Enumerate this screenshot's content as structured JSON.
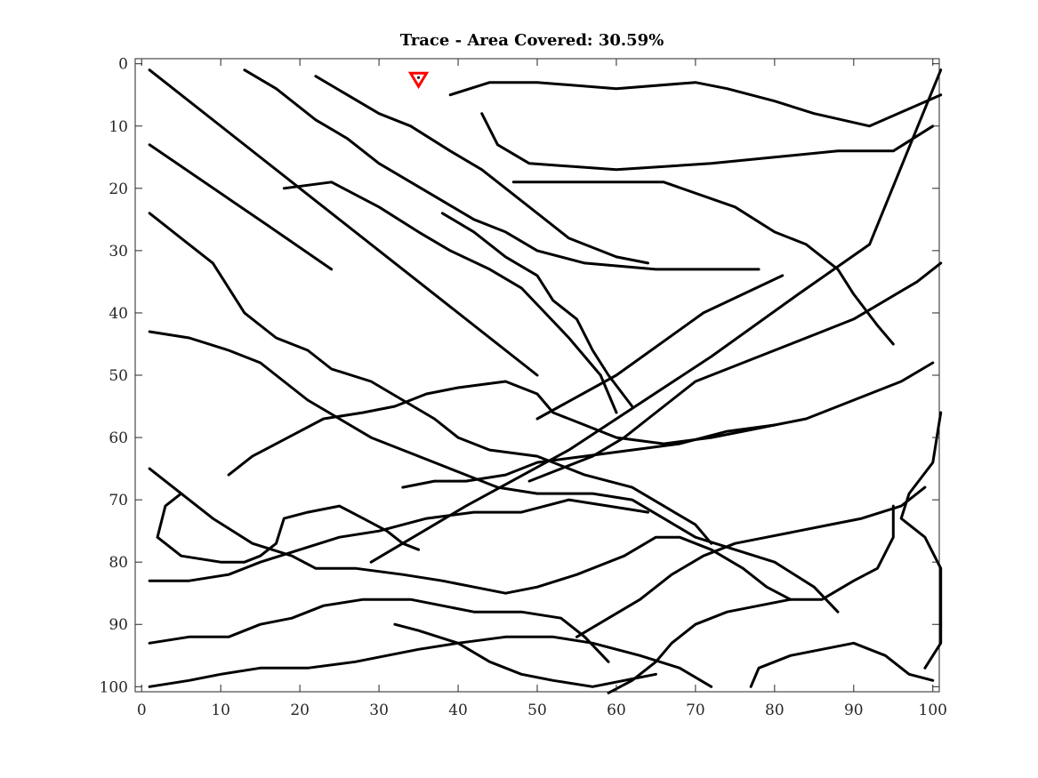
{
  "chart_data": {
    "type": "line",
    "title": "Trace - Area Covered: 30.59%",
    "xlabel": "",
    "ylabel": "",
    "xlim": [
      0,
      100
    ],
    "ylim": [
      0,
      100
    ],
    "y_reversed": true,
    "grid": false,
    "x_ticks": [
      0,
      10,
      20,
      30,
      40,
      50,
      60,
      70,
      80,
      90,
      100
    ],
    "y_ticks": [
      0,
      10,
      20,
      30,
      40,
      50,
      60,
      70,
      80,
      90,
      100
    ],
    "colors": {
      "trace": "#000000",
      "marker": "#ff0000"
    },
    "marker": {
      "x": 35,
      "y": 2.5,
      "shape": "triangle-down"
    },
    "series": [
      {
        "points": [
          [
            1,
            1
          ],
          [
            50,
            50
          ]
        ]
      },
      {
        "points": [
          [
            1,
            13
          ],
          [
            16,
            26
          ],
          [
            24,
            33
          ]
        ]
      },
      {
        "points": [
          [
            50,
            57
          ],
          [
            60,
            50
          ],
          [
            71,
            40
          ],
          [
            81,
            34
          ]
        ]
      },
      {
        "points": [
          [
            29,
            80
          ],
          [
            41,
            71
          ],
          [
            54,
            62
          ],
          [
            72,
            47
          ],
          [
            83,
            37
          ],
          [
            92,
            29
          ],
          [
            101,
            1
          ]
        ]
      },
      {
        "points": [
          [
            13,
            1
          ],
          [
            17,
            4
          ],
          [
            22,
            9
          ],
          [
            26,
            12
          ],
          [
            30,
            16
          ],
          [
            34,
            19
          ],
          [
            38,
            22
          ],
          [
            42,
            25
          ],
          [
            46,
            27
          ],
          [
            50,
            30
          ],
          [
            56,
            32
          ],
          [
            65,
            33
          ],
          [
            78,
            33
          ]
        ]
      },
      {
        "points": [
          [
            22,
            2
          ],
          [
            26,
            5
          ],
          [
            30,
            8
          ],
          [
            34,
            10
          ],
          [
            39,
            14
          ],
          [
            43,
            17
          ],
          [
            47,
            21
          ],
          [
            50,
            24
          ],
          [
            54,
            28
          ],
          [
            60,
            31
          ],
          [
            64,
            32
          ]
        ]
      },
      {
        "points": [
          [
            38,
            24
          ],
          [
            42,
            27
          ],
          [
            46,
            31
          ],
          [
            50,
            34
          ],
          [
            52,
            38
          ],
          [
            55,
            41
          ],
          [
            57,
            46
          ],
          [
            59,
            50
          ],
          [
            62,
            55
          ]
        ]
      },
      {
        "points": [
          [
            43,
            8
          ],
          [
            45,
            13
          ],
          [
            49,
            16
          ],
          [
            60,
            17
          ],
          [
            72,
            16
          ],
          [
            80,
            15
          ],
          [
            88,
            14
          ],
          [
            95,
            14
          ],
          [
            100,
            10
          ]
        ]
      },
      {
        "points": [
          [
            39,
            5
          ],
          [
            44,
            3
          ],
          [
            50,
            3
          ],
          [
            60,
            4
          ],
          [
            70,
            3
          ],
          [
            74,
            4
          ],
          [
            80,
            6
          ],
          [
            85,
            8
          ],
          [
            92,
            10
          ],
          [
            101,
            5
          ]
        ]
      },
      {
        "points": [
          [
            47,
            19
          ],
          [
            57,
            19
          ],
          [
            66,
            19
          ],
          [
            75,
            23
          ],
          [
            80,
            27
          ],
          [
            84,
            29
          ],
          [
            88,
            33
          ],
          [
            90,
            37
          ],
          [
            93,
            42
          ],
          [
            95,
            45
          ]
        ]
      },
      {
        "points": [
          [
            1,
            24
          ],
          [
            5,
            28
          ],
          [
            9,
            32
          ],
          [
            11,
            36
          ],
          [
            13,
            40
          ],
          [
            17,
            44
          ],
          [
            21,
            46
          ],
          [
            24,
            49
          ],
          [
            29,
            51
          ],
          [
            33,
            54
          ],
          [
            37,
            57
          ],
          [
            40,
            60
          ],
          [
            44,
            62
          ],
          [
            50,
            63
          ],
          [
            56,
            66
          ],
          [
            62,
            68
          ],
          [
            66,
            71
          ],
          [
            70,
            74
          ],
          [
            72,
            77
          ]
        ]
      },
      {
        "points": [
          [
            1,
            43
          ],
          [
            6,
            44
          ],
          [
            11,
            46
          ],
          [
            15,
            48
          ],
          [
            18,
            51
          ],
          [
            21,
            54
          ],
          [
            25,
            57
          ],
          [
            29,
            60
          ],
          [
            33,
            62
          ],
          [
            37,
            64
          ],
          [
            41,
            66
          ],
          [
            45,
            68
          ],
          [
            50,
            69
          ],
          [
            57,
            69
          ],
          [
            62,
            70
          ],
          [
            66,
            73
          ],
          [
            70,
            76
          ],
          [
            75,
            78
          ],
          [
            80,
            80
          ],
          [
            85,
            84
          ],
          [
            88,
            88
          ]
        ]
      },
      {
        "points": [
          [
            18,
            20
          ],
          [
            24,
            19
          ],
          [
            30,
            23
          ],
          [
            35,
            27
          ],
          [
            39,
            30
          ],
          [
            44,
            33
          ],
          [
            48,
            36
          ],
          [
            51,
            40
          ],
          [
            54,
            44
          ],
          [
            56,
            47
          ],
          [
            58,
            50
          ],
          [
            60,
            56
          ]
        ]
      },
      {
        "points": [
          [
            1,
            65
          ],
          [
            5,
            69
          ],
          [
            9,
            73
          ],
          [
            14,
            77
          ],
          [
            19,
            79
          ],
          [
            22,
            81
          ],
          [
            27,
            81
          ],
          [
            33,
            82
          ],
          [
            38,
            83
          ],
          [
            42,
            84
          ],
          [
            46,
            85
          ],
          [
            50,
            84
          ],
          [
            55,
            82
          ],
          [
            61,
            79
          ],
          [
            65,
            76
          ],
          [
            68,
            76
          ],
          [
            72,
            78
          ],
          [
            76,
            81
          ],
          [
            79,
            84
          ],
          [
            82,
            86
          ]
        ]
      },
      {
        "points": [
          [
            5,
            69
          ],
          [
            3,
            71
          ],
          [
            2,
            76
          ],
          [
            5,
            79
          ],
          [
            10,
            80
          ],
          [
            13,
            80
          ],
          [
            15,
            79
          ],
          [
            17,
            77
          ],
          [
            18,
            73
          ],
          [
            21,
            72
          ],
          [
            25,
            71
          ],
          [
            28,
            73
          ],
          [
            31,
            75
          ],
          [
            33,
            77
          ],
          [
            35,
            78
          ]
        ]
      },
      {
        "points": [
          [
            1,
            83
          ],
          [
            6,
            83
          ],
          [
            11,
            82
          ],
          [
            15,
            80
          ],
          [
            20,
            78
          ],
          [
            25,
            76
          ],
          [
            30,
            75
          ],
          [
            36,
            73
          ],
          [
            42,
            72
          ],
          [
            48,
            72
          ],
          [
            54,
            70
          ],
          [
            59,
            71
          ],
          [
            64,
            72
          ]
        ]
      },
      {
        "points": [
          [
            1,
            93
          ],
          [
            6,
            92
          ],
          [
            11,
            92
          ],
          [
            15,
            90
          ],
          [
            19,
            89
          ],
          [
            23,
            87
          ],
          [
            28,
            86
          ],
          [
            34,
            86
          ],
          [
            38,
            87
          ],
          [
            42,
            88
          ],
          [
            48,
            88
          ],
          [
            53,
            89
          ],
          [
            56,
            92
          ],
          [
            59,
            96
          ]
        ]
      },
      {
        "points": [
          [
            1,
            100
          ],
          [
            6,
            99
          ],
          [
            10,
            98
          ],
          [
            15,
            97
          ],
          [
            21,
            97
          ],
          [
            27,
            96
          ],
          [
            31,
            95
          ],
          [
            35,
            94
          ],
          [
            40,
            93
          ],
          [
            46,
            92
          ],
          [
            52,
            92
          ],
          [
            57,
            93
          ],
          [
            63,
            95
          ],
          [
            68,
            97
          ],
          [
            72,
            100
          ]
        ]
      },
      {
        "points": [
          [
            11,
            66
          ],
          [
            14,
            63
          ],
          [
            17,
            61
          ],
          [
            20,
            59
          ],
          [
            23,
            57
          ],
          [
            28,
            56
          ],
          [
            32,
            55
          ],
          [
            36,
            53
          ],
          [
            40,
            52
          ],
          [
            46,
            51
          ],
          [
            50,
            53
          ],
          [
            52,
            56
          ],
          [
            56,
            58
          ],
          [
            60,
            60
          ],
          [
            66,
            61
          ],
          [
            72,
            60
          ],
          [
            76,
            59
          ],
          [
            80,
            58
          ],
          [
            84,
            57
          ],
          [
            88,
            55
          ],
          [
            92,
            53
          ],
          [
            96,
            51
          ],
          [
            100,
            48
          ]
        ]
      },
      {
        "points": [
          [
            33,
            68
          ],
          [
            37,
            67
          ],
          [
            41,
            67
          ],
          [
            46,
            66
          ],
          [
            50,
            64
          ],
          [
            56,
            63
          ],
          [
            62,
            62
          ],
          [
            68,
            61
          ],
          [
            74,
            59
          ],
          [
            80,
            58
          ]
        ]
      },
      {
        "points": [
          [
            49,
            67
          ],
          [
            53,
            65
          ],
          [
            57,
            63
          ],
          [
            61,
            60
          ],
          [
            64,
            57
          ],
          [
            67,
            54
          ],
          [
            70,
            51
          ],
          [
            74,
            49
          ],
          [
            78,
            47
          ],
          [
            82,
            45
          ],
          [
            86,
            43
          ],
          [
            90,
            41
          ],
          [
            94,
            38
          ],
          [
            98,
            35
          ],
          [
            101,
            32
          ]
        ]
      },
      {
        "points": [
          [
            59,
            101
          ],
          [
            62,
            99
          ],
          [
            65,
            96
          ],
          [
            67,
            93
          ],
          [
            70,
            90
          ],
          [
            74,
            88
          ],
          [
            78,
            87
          ],
          [
            82,
            86
          ],
          [
            86,
            86
          ],
          [
            90,
            83
          ],
          [
            93,
            81
          ],
          [
            95,
            76
          ],
          [
            95,
            71
          ]
        ]
      },
      {
        "points": [
          [
            77,
            100
          ],
          [
            78,
            97
          ],
          [
            82,
            95
          ],
          [
            86,
            94
          ],
          [
            90,
            93
          ],
          [
            94,
            95
          ],
          [
            97,
            98
          ],
          [
            100,
            99
          ]
        ]
      },
      {
        "points": [
          [
            99,
            97
          ],
          [
            101,
            93
          ],
          [
            101,
            85
          ],
          [
            101,
            81
          ],
          [
            99,
            76
          ],
          [
            96,
            73
          ],
          [
            97,
            69
          ],
          [
            100,
            64
          ],
          [
            101,
            56
          ]
        ]
      },
      {
        "points": [
          [
            55,
            92
          ],
          [
            59,
            89
          ],
          [
            63,
            86
          ],
          [
            67,
            82
          ],
          [
            71,
            79
          ],
          [
            75,
            77
          ],
          [
            79,
            76
          ],
          [
            83,
            75
          ],
          [
            87,
            74
          ],
          [
            91,
            73
          ],
          [
            96,
            71
          ],
          [
            99,
            68
          ]
        ]
      },
      {
        "points": [
          [
            32,
            90
          ],
          [
            35,
            91
          ],
          [
            40,
            93
          ],
          [
            44,
            96
          ],
          [
            48,
            98
          ],
          [
            52,
            99
          ],
          [
            57,
            100
          ],
          [
            61,
            99
          ],
          [
            65,
            98
          ]
        ]
      }
    ]
  }
}
